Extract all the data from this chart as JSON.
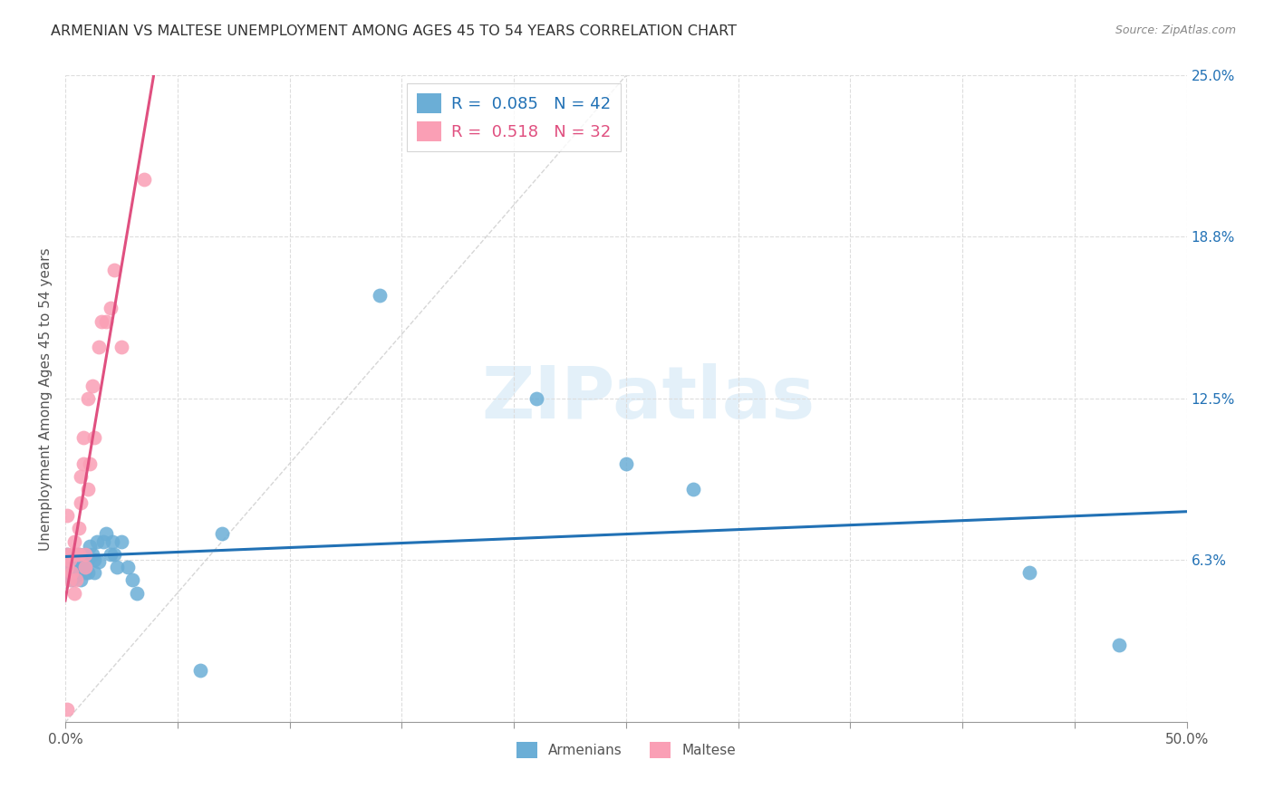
{
  "title": "ARMENIAN VS MALTESE UNEMPLOYMENT AMONG AGES 45 TO 54 YEARS CORRELATION CHART",
  "source": "Source: ZipAtlas.com",
  "ylabel": "Unemployment Among Ages 45 to 54 years",
  "xlim": [
    0,
    0.5
  ],
  "ylim": [
    0,
    0.25
  ],
  "xtick_positions": [
    0.0,
    0.05,
    0.1,
    0.15,
    0.2,
    0.25,
    0.3,
    0.35,
    0.4,
    0.45,
    0.5
  ],
  "xtick_labels_show": {
    "0.0": "0.0%",
    "0.50": "50.0%"
  },
  "yticks_right": [
    0.0,
    0.063,
    0.125,
    0.188,
    0.25
  ],
  "ytick_right_labels": [
    "",
    "6.3%",
    "12.5%",
    "18.8%",
    "25.0%"
  ],
  "armenian_R": 0.085,
  "armenian_N": 42,
  "maltese_R": 0.518,
  "maltese_N": 32,
  "armenian_color": "#6baed6",
  "maltese_color": "#fa9fb5",
  "trendline_armenian_color": "#2171b5",
  "trendline_maltese_color": "#e05080",
  "watermark": "ZIPatlas",
  "armenian_x": [
    0.001,
    0.001,
    0.002,
    0.003,
    0.003,
    0.004,
    0.004,
    0.005,
    0.005,
    0.006,
    0.006,
    0.007,
    0.007,
    0.008,
    0.009,
    0.009,
    0.01,
    0.01,
    0.011,
    0.012,
    0.013,
    0.013,
    0.014,
    0.015,
    0.017,
    0.018,
    0.02,
    0.021,
    0.022,
    0.023,
    0.025,
    0.028,
    0.03,
    0.032,
    0.06,
    0.07,
    0.14,
    0.21,
    0.25,
    0.28,
    0.43,
    0.47
  ],
  "armenian_y": [
    0.065,
    0.058,
    0.062,
    0.06,
    0.055,
    0.063,
    0.058,
    0.062,
    0.057,
    0.065,
    0.06,
    0.063,
    0.055,
    0.06,
    0.065,
    0.058,
    0.063,
    0.058,
    0.068,
    0.065,
    0.063,
    0.058,
    0.07,
    0.062,
    0.07,
    0.073,
    0.065,
    0.07,
    0.065,
    0.06,
    0.07,
    0.06,
    0.055,
    0.05,
    0.02,
    0.073,
    0.165,
    0.125,
    0.1,
    0.09,
    0.058,
    0.03
  ],
  "maltese_x": [
    0.001,
    0.001,
    0.001,
    0.001,
    0.002,
    0.002,
    0.003,
    0.003,
    0.004,
    0.004,
    0.005,
    0.005,
    0.006,
    0.006,
    0.007,
    0.007,
    0.008,
    0.008,
    0.009,
    0.009,
    0.01,
    0.01,
    0.011,
    0.012,
    0.013,
    0.015,
    0.016,
    0.018,
    0.02,
    0.022,
    0.025,
    0.035
  ],
  "maltese_y": [
    0.005,
    0.06,
    0.065,
    0.08,
    0.055,
    0.063,
    0.058,
    0.065,
    0.05,
    0.07,
    0.055,
    0.065,
    0.075,
    0.065,
    0.085,
    0.095,
    0.1,
    0.11,
    0.06,
    0.065,
    0.125,
    0.09,
    0.1,
    0.13,
    0.11,
    0.145,
    0.155,
    0.155,
    0.16,
    0.175,
    0.145,
    0.21
  ]
}
